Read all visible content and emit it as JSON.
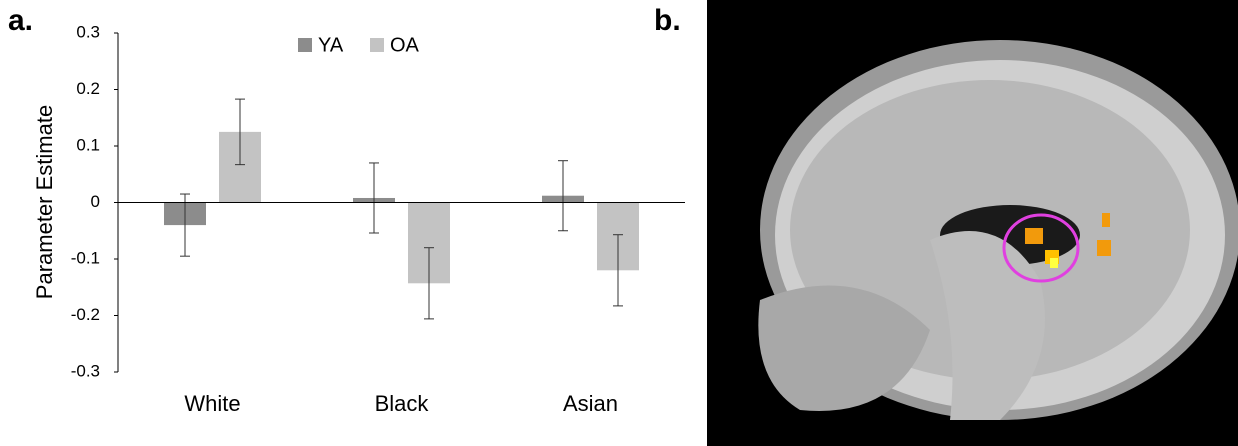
{
  "panel_a_label": "a.",
  "panel_b_label": "b.",
  "chart_data": {
    "type": "bar",
    "ylabel": "Parameter Estimate",
    "categories": [
      "White",
      "Black",
      "Asian"
    ],
    "series": [
      {
        "name": "YA",
        "color": "#8c8c8c",
        "values": [
          -0.04,
          0.008,
          0.012
        ],
        "errors": [
          0.055,
          0.062,
          0.062
        ]
      },
      {
        "name": "OA",
        "color": "#c3c3c3",
        "values": [
          0.125,
          -0.143,
          -0.12
        ],
        "errors": [
          0.058,
          0.063,
          0.063
        ]
      }
    ],
    "ylim": [
      -0.3,
      0.3
    ],
    "yticks": [
      0.3,
      0.2,
      0.1,
      0,
      -0.1,
      -0.2,
      -0.3
    ],
    "grid": false,
    "legend": "top"
  }
}
